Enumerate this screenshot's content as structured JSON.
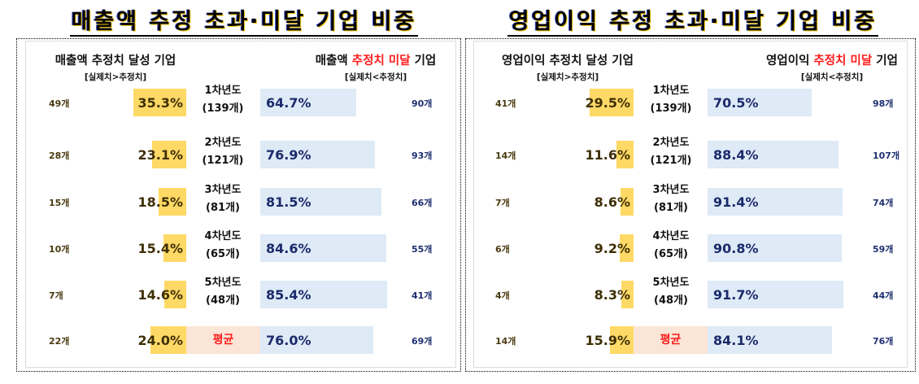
{
  "charts": [
    {
      "title": "매출액 추정 초과·미달 기업 비중",
      "left_header": {
        "main": "매출액 추정치 달성 기업",
        "sub": "[실제치>추정치]"
      },
      "right_header": {
        "pre": "매출액 ",
        "highlight": "추정치 미달",
        "post": " 기업",
        "sub": "[실제치<추정치]"
      },
      "rows": [
        {
          "year": "1차년도",
          "total": "(139개)",
          "above_count": "49개",
          "above_pct": "35.3%",
          "below_pct": "64.7%",
          "below_count": "90개"
        },
        {
          "year": "2차년도",
          "total": "(121개)",
          "above_count": "28개",
          "above_pct": "23.1%",
          "below_pct": "76.9%",
          "below_count": "93개"
        },
        {
          "year": "3차년도",
          "total": "(81개)",
          "above_count": "15개",
          "above_pct": "18.5%",
          "below_pct": "81.5%",
          "below_count": "66개"
        },
        {
          "year": "4차년도",
          "total": "(65개)",
          "above_count": "10개",
          "above_pct": "15.4%",
          "below_pct": "84.6%",
          "below_count": "55개"
        },
        {
          "year": "5차년도",
          "total": "(48개)",
          "above_count": "7개",
          "above_pct": "14.6%",
          "below_pct": "85.4%",
          "below_count": "41개"
        },
        {
          "year": "평균",
          "total": "",
          "above_count": "22개",
          "above_pct": "24.0%",
          "below_pct": "76.0%",
          "below_count": "69개"
        }
      ]
    },
    {
      "title": "영업이익 추정 초과·미달 기업 비중",
      "left_header": {
        "main": "영업이익 추정치 달성 기업",
        "sub": "[실제치>추정치]"
      },
      "right_header": {
        "pre": "영업이익 ",
        "highlight": "추정치 미달",
        "post": " 기업",
        "sub": "[실제치<추정치]"
      },
      "rows": [
        {
          "year": "1차년도",
          "total": "(139개)",
          "above_count": "41개",
          "above_pct": "29.5%",
          "below_pct": "70.5%",
          "below_count": "98개"
        },
        {
          "year": "2차년도",
          "total": "(121개)",
          "above_count": "14개",
          "above_pct": "11.6%",
          "below_pct": "88.4%",
          "below_count": "107개"
        },
        {
          "year": "3차년도",
          "total": "(81개)",
          "above_count": "7개",
          "above_pct": "8.6%",
          "below_pct": "91.4%",
          "below_count": "74개"
        },
        {
          "year": "4차년도",
          "total": "(65개)",
          "above_count": "6개",
          "above_pct": "9.2%",
          "below_pct": "90.8%",
          "below_count": "59개"
        },
        {
          "year": "5차년도",
          "total": "(48개)",
          "above_count": "4개",
          "above_pct": "8.3%",
          "below_pct": "91.7%",
          "below_count": "44개"
        },
        {
          "year": "평균",
          "total": "",
          "above_count": "14개",
          "above_pct": "15.9%",
          "below_pct": "84.1%",
          "below_count": "76개"
        }
      ]
    }
  ],
  "colors": {
    "above_bar": "#ffd966",
    "below_bar": "#deeaf6",
    "avg_bg": "#fbe5d6",
    "highlight_red": "#ff1a1a"
  },
  "chart_data": [
    {
      "type": "bar",
      "title": "매출액 추정 초과·미달 기업 비중",
      "categories": [
        "1차년도 (139개)",
        "2차년도 (121개)",
        "3차년도 (81개)",
        "4차년도 (65개)",
        "5차년도 (48개)",
        "평균"
      ],
      "series": [
        {
          "name": "매출액 추정치 달성 기업 [실제치>추정치] (%)",
          "values": [
            35.3,
            23.1,
            18.5,
            15.4,
            14.6,
            24.0
          ],
          "counts": [
            49,
            28,
            15,
            10,
            7,
            22
          ]
        },
        {
          "name": "매출액 추정치 미달 기업 [실제치<추정치] (%)",
          "values": [
            64.7,
            76.9,
            81.5,
            84.6,
            85.4,
            76.0
          ],
          "counts": [
            90,
            93,
            66,
            55,
            41,
            69
          ]
        }
      ],
      "orientation": "horizontal diverging",
      "xlabel": "",
      "ylabel": ""
    },
    {
      "type": "bar",
      "title": "영업이익 추정 초과·미달 기업 비중",
      "categories": [
        "1차년도 (139개)",
        "2차년도 (121개)",
        "3차년도 (81개)",
        "4차년도 (65개)",
        "5차년도 (48개)",
        "평균"
      ],
      "series": [
        {
          "name": "영업이익 추정치 달성 기업 [실제치>추정치] (%)",
          "values": [
            29.5,
            11.6,
            8.6,
            9.2,
            8.3,
            15.9
          ],
          "counts": [
            41,
            14,
            7,
            6,
            4,
            14
          ]
        },
        {
          "name": "영업이익 추정치 미달 기업 [실제치<추정치] (%)",
          "values": [
            70.5,
            88.4,
            91.4,
            90.8,
            91.7,
            84.1
          ],
          "counts": [
            98,
            107,
            74,
            59,
            44,
            76
          ]
        }
      ],
      "orientation": "horizontal diverging",
      "xlabel": "",
      "ylabel": ""
    }
  ]
}
